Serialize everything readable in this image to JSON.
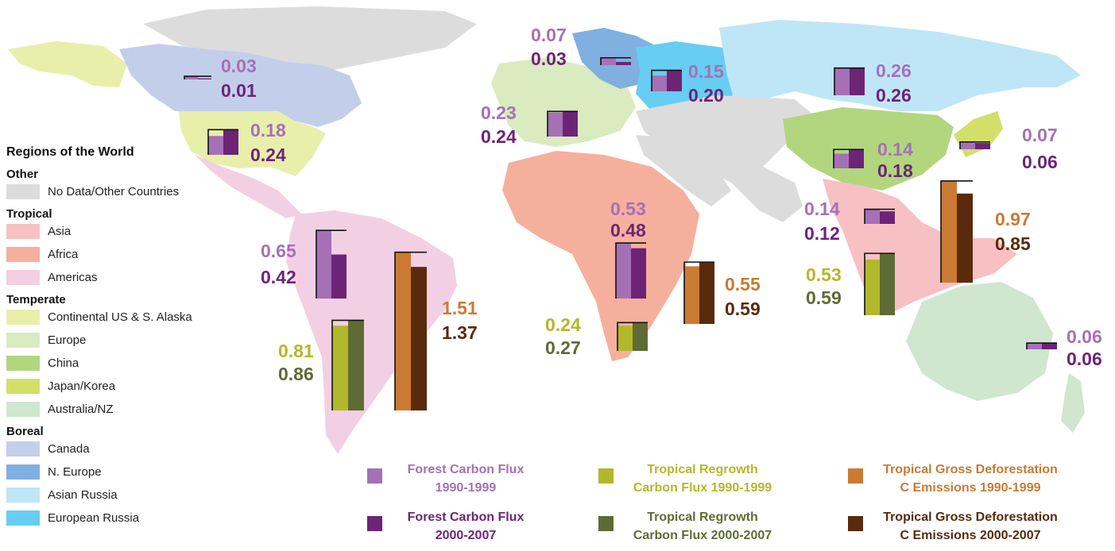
{
  "colors": {
    "other": "#dcdcdc",
    "trop_asia": "#f7c0c3",
    "trop_africa": "#f5b09d",
    "trop_americas": "#f3cfe4",
    "temp_us": "#e8efaa",
    "temp_europe": "#d9ebbf",
    "temp_china": "#b2d67e",
    "temp_japan": "#d2e06a",
    "temp_aus": "#d0e6cf",
    "bor_canada": "#c3cfea",
    "bor_neurope": "#7fb0df",
    "bor_asianrussia": "#bfe6f6",
    "bor_eurussia": "#67cdf2",
    "forest_9099": "#a670b6",
    "forest_0007": "#6d2477",
    "regrow_9099": "#b2b82b",
    "regrow_0007": "#5f6b34",
    "defor_9099": "#cb7a33",
    "defor_0007": "#5a2a0c"
  },
  "legend": {
    "title": "Regions of the World",
    "groups": [
      {
        "heading": "Other",
        "items": [
          {
            "label": "No Data/Other Countries",
            "color": "#dcdcdc"
          }
        ]
      },
      {
        "heading": "Tropical",
        "items": [
          {
            "label": "Asia",
            "color": "#f7c0c3"
          },
          {
            "label": "Africa",
            "color": "#f5b09d"
          },
          {
            "label": "Americas",
            "color": "#f3cfe4"
          }
        ]
      },
      {
        "heading": "Temperate",
        "items": [
          {
            "label": "Continental US & S. Alaska",
            "color": "#e8efaa"
          },
          {
            "label": "Europe",
            "color": "#d9ebbf"
          },
          {
            "label": "China",
            "color": "#b2d67e"
          },
          {
            "label": "Japan/Korea",
            "color": "#d2e06a"
          },
          {
            "label": "Australia/NZ",
            "color": "#d0e6cf"
          }
        ]
      },
      {
        "heading": "Boreal",
        "items": [
          {
            "label": "Canada",
            "color": "#c3cfea"
          },
          {
            "label": "N. Europe",
            "color": "#7fb0df"
          },
          {
            "label": "Asian Russia",
            "color": "#bfe6f6"
          },
          {
            "label": "European Russia",
            "color": "#67cdf2"
          }
        ]
      }
    ]
  },
  "key": [
    {
      "line1": "Forest Carbon Flux",
      "line2": "1990-1999",
      "color": "#a670b6"
    },
    {
      "line1": "Forest Carbon Flux",
      "line2": "2000-2007",
      "color": "#6d2477"
    },
    {
      "line1": "Tropical Regrowth",
      "line2": "Carbon Flux 1990-1999",
      "color": "#b2b82b"
    },
    {
      "line1": "Tropical Regrowth",
      "line2": "Carbon Flux 2000-2007",
      "color": "#5f6b34"
    },
    {
      "line1": "Tropical Gross Deforestation",
      "line2": "C Emissions 1990-1999",
      "color": "#cb7a33"
    },
    {
      "line1": "Tropical Gross Deforestation",
      "line2": "C Emissions 2000-2007",
      "color": "#5a2a0c"
    }
  ],
  "chart_data": {
    "type": "bar",
    "series_names": [
      "Forest Carbon Flux 1990-1999",
      "Forest Carbon Flux 2000-2007",
      "Tropical Regrowth Carbon Flux 1990-1999",
      "Tropical Regrowth Carbon Flux 2000-2007",
      "Tropical Gross Deforestation C Emissions 1990-1999",
      "Tropical Gross Deforestation C Emissions 2000-2007"
    ],
    "groups": [
      {
        "region": "Canada",
        "kind": "forest",
        "v1": "0.03",
        "v2": "0.01"
      },
      {
        "region": "Continental US & S. Alaska",
        "kind": "forest",
        "v1": "0.18",
        "v2": "0.24"
      },
      {
        "region": "Europe",
        "kind": "forest",
        "v1": "0.23",
        "v2": "0.24"
      },
      {
        "region": "N. Europe",
        "kind": "forest",
        "v1": "0.07",
        "v2": "0.03"
      },
      {
        "region": "European Russia",
        "kind": "forest",
        "v1": "0.15",
        "v2": "0.20"
      },
      {
        "region": "Asian Russia",
        "kind": "forest",
        "v1": "0.26",
        "v2": "0.26"
      },
      {
        "region": "China",
        "kind": "forest",
        "v1": "0.14",
        "v2": "0.18"
      },
      {
        "region": "Japan/Korea",
        "kind": "forest",
        "v1": "0.07",
        "v2": "0.06"
      },
      {
        "region": "Tropical Asia",
        "kind": "forest",
        "v1": "0.14",
        "v2": "0.12"
      },
      {
        "region": "Tropical Africa",
        "kind": "forest",
        "v1": "0.53",
        "v2": "0.48"
      },
      {
        "region": "Tropical Americas",
        "kind": "forest",
        "v1": "0.65",
        "v2": "0.42"
      },
      {
        "region": "Australia/NZ",
        "kind": "forest",
        "v1": "0.06",
        "v2": "0.06"
      },
      {
        "region": "Tropical Americas",
        "kind": "regrow",
        "v1": "0.81",
        "v2": "0.86"
      },
      {
        "region": "Tropical Africa",
        "kind": "regrow",
        "v1": "0.24",
        "v2": "0.27"
      },
      {
        "region": "Tropical Asia",
        "kind": "regrow",
        "v1": "0.53",
        "v2": "0.59"
      },
      {
        "region": "Tropical Americas",
        "kind": "defor",
        "v1": "1.51",
        "v2": "1.37"
      },
      {
        "region": "Tropical Africa",
        "kind": "defor",
        "v1": "0.55",
        "v2": "0.59"
      },
      {
        "region": "Tropical Asia",
        "kind": "defor",
        "v1": "0.97",
        "v2": "0.85"
      }
    ]
  }
}
